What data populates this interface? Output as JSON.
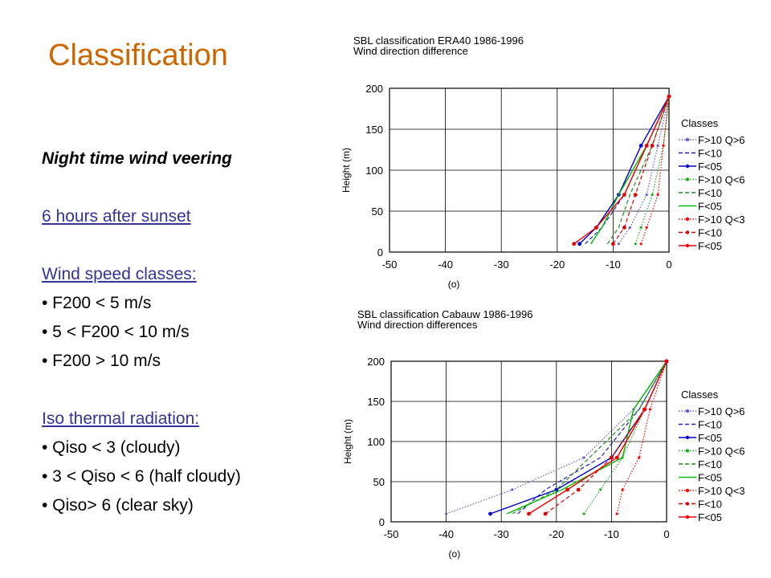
{
  "slide_title": "Classification",
  "left": {
    "heading": "Night time wind veering",
    "after_sunset": "6 hours after sunset",
    "wind_classes_header": "Wind speed classes:",
    "wind_classes": [
      "• F200 < 5 m/s",
      "• 5 < F200 < 10 m/s",
      "• F200 > 10 m/s"
    ],
    "radiation_header": "Iso thermal radiation:",
    "radiation_classes": [
      "• Qiso < 3 (cloudy)",
      "• 3 < Qiso < 6 (half cloudy)",
      "• Qiso> 6 (clear sky)"
    ]
  },
  "chart_data": [
    {
      "type": "line",
      "title": "SBL classification ERA40 1986-1996",
      "subtitle": "Wind direction difference",
      "xlabel": "(o)",
      "ylabel": "Height (m)",
      "xlim": [
        -50,
        0
      ],
      "ylim": [
        0,
        200
      ],
      "xticks": [
        -50,
        -40,
        -30,
        -20,
        -10,
        0
      ],
      "yticks": [
        0,
        50,
        100,
        150,
        200
      ],
      "grid": true,
      "legend_title": "Classes",
      "legend_position": "right",
      "series": [
        {
          "name": "F>10 Q>6",
          "color": "#6a5acd",
          "style": "dotted",
          "marker": "dot",
          "points": [
            [
              -9,
              10
            ],
            [
              -7,
              30
            ],
            [
              -4,
              70
            ],
            [
              -2,
              130
            ],
            [
              0,
              190
            ]
          ]
        },
        {
          "name": "F<10",
          "color": "#1f1fbf",
          "style": "dashed",
          "marker": "none",
          "points": [
            [
              -15,
              10
            ],
            [
              -12,
              30
            ],
            [
              -8,
              70
            ],
            [
              -4,
              130
            ],
            [
              0,
              190
            ]
          ]
        },
        {
          "name": "F<05",
          "color": "#0000cc",
          "style": "solid",
          "marker": "dot",
          "points": [
            [
              -16,
              10
            ],
            [
              -13,
              30
            ],
            [
              -9,
              70
            ],
            [
              -5,
              130
            ],
            [
              0,
              190
            ]
          ]
        },
        {
          "name": "F>10 Q<6",
          "color": "#22aa22",
          "style": "dotted",
          "marker": "dot",
          "points": [
            [
              -6,
              10
            ],
            [
              -5,
              30
            ],
            [
              -3,
              70
            ],
            [
              -1,
              130
            ],
            [
              0,
              190
            ]
          ]
        },
        {
          "name": "F<10",
          "color": "#228b22",
          "style": "dashed",
          "marker": "none",
          "points": [
            [
              -11,
              10
            ],
            [
              -9,
              30
            ],
            [
              -7,
              70
            ],
            [
              -3,
              130
            ],
            [
              0,
              190
            ]
          ]
        },
        {
          "name": "F<05",
          "color": "#00bb00",
          "style": "solid",
          "marker": "none",
          "points": [
            [
              -14,
              10
            ],
            [
              -12,
              30
            ],
            [
              -9,
              70
            ],
            [
              -4,
              130
            ],
            [
              0,
              190
            ]
          ]
        },
        {
          "name": "F>10 Q<3",
          "color": "#ff0000",
          "style": "dotted",
          "marker": "dot",
          "points": [
            [
              -5,
              10
            ],
            [
              -4,
              30
            ],
            [
              -2,
              70
            ],
            [
              -1,
              130
            ],
            [
              0,
              190
            ]
          ]
        },
        {
          "name": "F<10",
          "color": "#dd0000",
          "style": "dashed",
          "marker": "dot",
          "points": [
            [
              -10,
              10
            ],
            [
              -8,
              30
            ],
            [
              -6,
              70
            ],
            [
              -3,
              130
            ],
            [
              0,
              190
            ]
          ]
        },
        {
          "name": "F<05",
          "color": "#ee0000",
          "style": "solid",
          "marker": "dot",
          "points": [
            [
              -17,
              10
            ],
            [
              -13,
              30
            ],
            [
              -8,
              70
            ],
            [
              -4,
              130
            ],
            [
              0,
              190
            ]
          ]
        }
      ]
    },
    {
      "type": "line",
      "title": "SBL classification Cabauw 1986-1996",
      "subtitle": "Wind direction differences",
      "xlabel": "(o)",
      "ylabel": "Height (m)",
      "xlim": [
        -50,
        0
      ],
      "ylim": [
        0,
        200
      ],
      "xticks": [
        -50,
        -40,
        -30,
        -20,
        -10,
        0
      ],
      "yticks": [
        0,
        50,
        100,
        150,
        200
      ],
      "grid": true,
      "legend_title": "Classes",
      "legend_position": "right",
      "series": [
        {
          "name": "F>10 Q>6",
          "color": "#6a5acd",
          "style": "dotted",
          "marker": "dot",
          "points": [
            [
              -40,
              10
            ],
            [
              -28,
              40
            ],
            [
              -15,
              80
            ],
            [
              -6,
              140
            ],
            [
              0,
              200
            ]
          ]
        },
        {
          "name": "F<10",
          "color": "#1f1fbf",
          "style": "dashed",
          "marker": "none",
          "points": [
            [
              -27,
              10
            ],
            [
              -22,
              40
            ],
            [
              -12,
              80
            ],
            [
              -5,
              140
            ],
            [
              0,
              200
            ]
          ]
        },
        {
          "name": "F<05",
          "color": "#0000cc",
          "style": "solid",
          "marker": "dot",
          "points": [
            [
              -32,
              10
            ],
            [
              -20,
              40
            ],
            [
              -10,
              80
            ],
            [
              -4,
              140
            ],
            [
              0,
              200
            ]
          ]
        },
        {
          "name": "F>10 Q<6",
          "color": "#22aa22",
          "style": "dotted",
          "marker": "dot",
          "points": [
            [
              -15,
              10
            ],
            [
              -12,
              40
            ],
            [
              -8,
              80
            ],
            [
              -4,
              140
            ],
            [
              0,
              200
            ]
          ]
        },
        {
          "name": "F<10",
          "color": "#228b22",
          "style": "dashed",
          "marker": "none",
          "points": [
            [
              -28,
              10
            ],
            [
              -20,
              40
            ],
            [
              -14,
              80
            ],
            [
              -5,
              140
            ],
            [
              0,
              200
            ]
          ]
        },
        {
          "name": "F<05",
          "color": "#00bb00",
          "style": "solid",
          "marker": "none",
          "points": [
            [
              -29,
              10
            ],
            [
              -19,
              40
            ],
            [
              -8,
              80
            ],
            [
              -6,
              140
            ],
            [
              0,
              200
            ]
          ]
        },
        {
          "name": "F>10 Q<3",
          "color": "#ff0000",
          "style": "dotted",
          "marker": "dot",
          "points": [
            [
              -9,
              10
            ],
            [
              -8,
              40
            ],
            [
              -5,
              80
            ],
            [
              -3,
              140
            ],
            [
              0,
              200
            ]
          ]
        },
        {
          "name": "F<10",
          "color": "#dd0000",
          "style": "dashed",
          "marker": "dot",
          "points": [
            [
              -22,
              10
            ],
            [
              -16,
              40
            ],
            [
              -10,
              80
            ],
            [
              -4,
              140
            ],
            [
              0,
              200
            ]
          ]
        },
        {
          "name": "F<05",
          "color": "#ee0000",
          "style": "solid",
          "marker": "dot",
          "points": [
            [
              -25,
              10
            ],
            [
              -18,
              40
            ],
            [
              -9,
              80
            ],
            [
              -4,
              140
            ],
            [
              0,
              200
            ]
          ]
        }
      ]
    }
  ]
}
